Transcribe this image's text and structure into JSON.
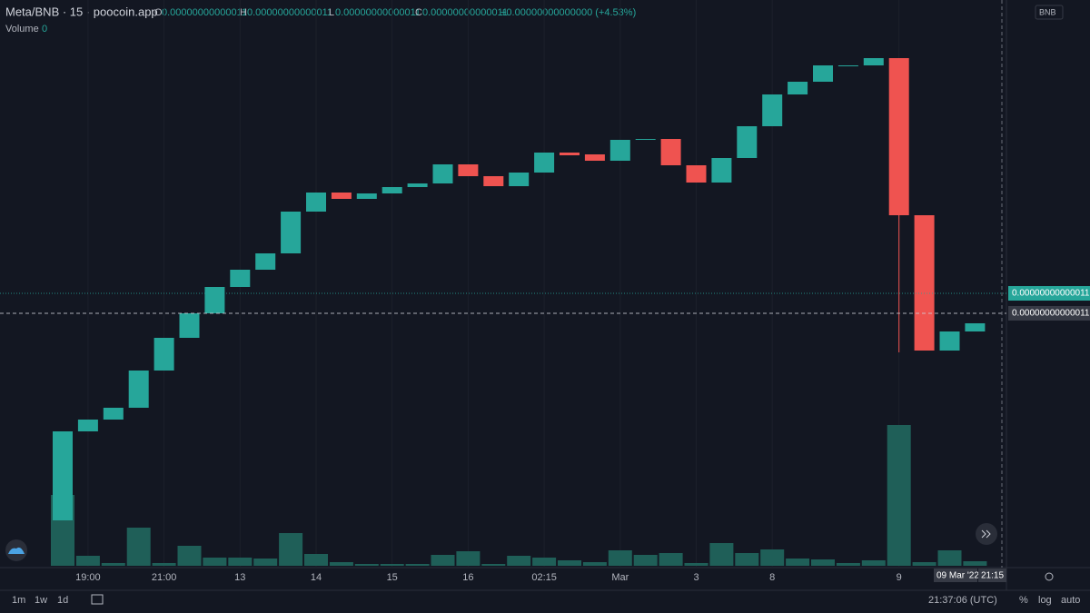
{
  "chart_data": {
    "type": "candlestick",
    "categories": [
      null,
      "19:00",
      null,
      null,
      "21:00",
      null,
      null,
      "13",
      null,
      null,
      "14",
      null,
      null,
      "15",
      null,
      null,
      "16",
      null,
      null,
      "02:15",
      null,
      null,
      "Mar",
      null,
      null,
      "3",
      null,
      null,
      "8",
      null,
      null,
      null,
      null,
      "9",
      null,
      null,
      null
    ],
    "open": [
      5.4,
      25,
      27.6,
      30.2,
      38.4,
      45.6,
      51,
      56.8,
      60.6,
      64.2,
      73.4,
      77.6,
      76.2,
      77.4,
      78.8,
      79.6,
      83.8,
      81.2,
      79,
      82,
      86.4,
      86,
      84.6,
      89.2,
      89.4,
      83.6,
      79.8,
      85.2,
      92.2,
      99.2,
      102,
      105.4,
      105.6,
      107.2,
      72.6,
      42.8,
      47
    ],
    "high": [
      25,
      27.6,
      30.2,
      38.4,
      45.6,
      51,
      56.8,
      60.6,
      64.2,
      73.4,
      77.6,
      77.6,
      77.4,
      78.8,
      79.6,
      83.8,
      83.8,
      81.2,
      82,
      86.4,
      86.4,
      86,
      89.2,
      89.4,
      89.4,
      83.6,
      85.2,
      92.2,
      99.2,
      102,
      105.6,
      105.6,
      107.2,
      107.2,
      72.6,
      47,
      48.8
    ],
    "low": [
      5.4,
      25,
      27.6,
      30.2,
      38.4,
      45.6,
      51,
      56.8,
      60.6,
      64.2,
      73.4,
      76.2,
      76.2,
      77.4,
      78.8,
      79.6,
      81.2,
      79,
      79,
      82,
      85.8,
      84.6,
      84.6,
      89.2,
      83.6,
      79.8,
      79.8,
      85.2,
      92.2,
      99.2,
      102,
      105.4,
      105.6,
      42.4,
      42.8,
      42.8,
      47
    ],
    "close": [
      25,
      27.6,
      30.2,
      38.4,
      45.6,
      51,
      56.8,
      60.6,
      64.2,
      73.4,
      77.6,
      76.2,
      77.4,
      78.8,
      79.6,
      83.8,
      81.2,
      79,
      82,
      86.4,
      85.8,
      84.6,
      89.2,
      89.4,
      83.6,
      79.8,
      85.2,
      92.2,
      99.2,
      102,
      105.6,
      105.6,
      107.2,
      72.6,
      42.8,
      47,
      48.8
    ],
    "up_color": "#26a69a",
    "down_color": "#ef5350",
    "ylim": [
      0,
      112
    ],
    "volume": {
      "name": "Volume",
      "color": "#1f5f58",
      "ylim": [
        0,
        200
      ],
      "values": [
        78,
        11,
        3,
        42,
        3,
        22,
        9,
        9,
        8,
        36,
        13,
        4,
        2,
        2,
        2,
        12,
        16,
        2,
        11,
        9,
        6,
        4,
        17,
        12,
        14,
        3,
        25,
        14,
        18,
        8,
        7,
        3,
        6,
        155,
        4,
        17,
        5
      ]
    },
    "price_lines": [
      {
        "value": 55.4,
        "label": "0.00000000000011",
        "color": "#26a69a"
      },
      {
        "value": 51,
        "label": "0.00000000000011",
        "color": "#d1d4dc"
      }
    ]
  },
  "header": {
    "symbol": "Meta/BNB · 15 · poocoin.app",
    "o_label": "O",
    "o": "0.00000000000011",
    "h_label": "H",
    "h": "0.00000000000011",
    "l_label": "L",
    "l": "0.00000000000011",
    "c_label": "C",
    "c": "0.00000000000011",
    "change": "+0.00000000000000 (+4.53%)",
    "volume_value": "0",
    "currency": "BNB"
  },
  "crosshair": {
    "date": "09 Mar '22",
    "time": "21:15"
  },
  "footer": {
    "ranges": [
      "1m",
      "1w",
      "1d"
    ],
    "clock": "21:37:06 (UTC)",
    "percent": "%",
    "log": "log",
    "auto": "auto"
  }
}
